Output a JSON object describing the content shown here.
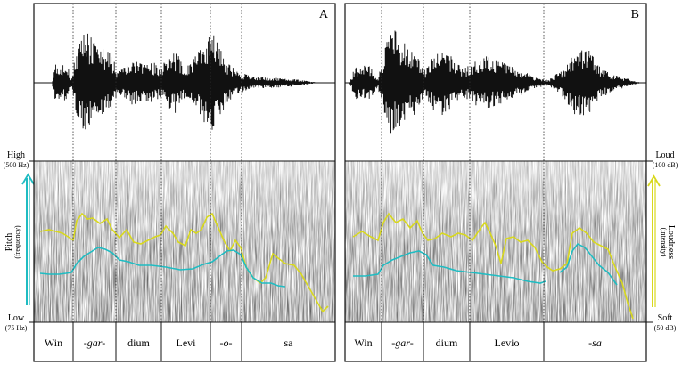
{
  "left_axis": {
    "high_label": "High",
    "high_value": "(500 Hz)",
    "low_label": "Low",
    "low_value": "(75 Hz)",
    "title": "Pitch",
    "subtitle": "(frequency)",
    "color": "#1fbcc2"
  },
  "right_axis": {
    "high_label": "Loud",
    "high_value": "(100 dB)",
    "low_label": "Soft",
    "low_value": "(50 dB)",
    "title": "Loudness",
    "subtitle": "(intensity)",
    "color": "#d8d81e"
  },
  "panels": [
    {
      "letter": "A",
      "segments": [
        {
          "text": "Win",
          "italic": false
        },
        {
          "text": "-gar-",
          "italic": true
        },
        {
          "text": "dium",
          "italic": false
        },
        {
          "text": "Levi",
          "italic": false
        },
        {
          "text": "-o-",
          "italic": true
        },
        {
          "text": "sa",
          "italic": false
        }
      ]
    },
    {
      "letter": "B",
      "segments": [
        {
          "text": "Win",
          "italic": false
        },
        {
          "text": "-gar-",
          "italic": true
        },
        {
          "text": "dium",
          "italic": false
        },
        {
          "text": "Levio",
          "italic": false
        },
        {
          "text": "-sa",
          "italic": true
        }
      ]
    }
  ]
}
